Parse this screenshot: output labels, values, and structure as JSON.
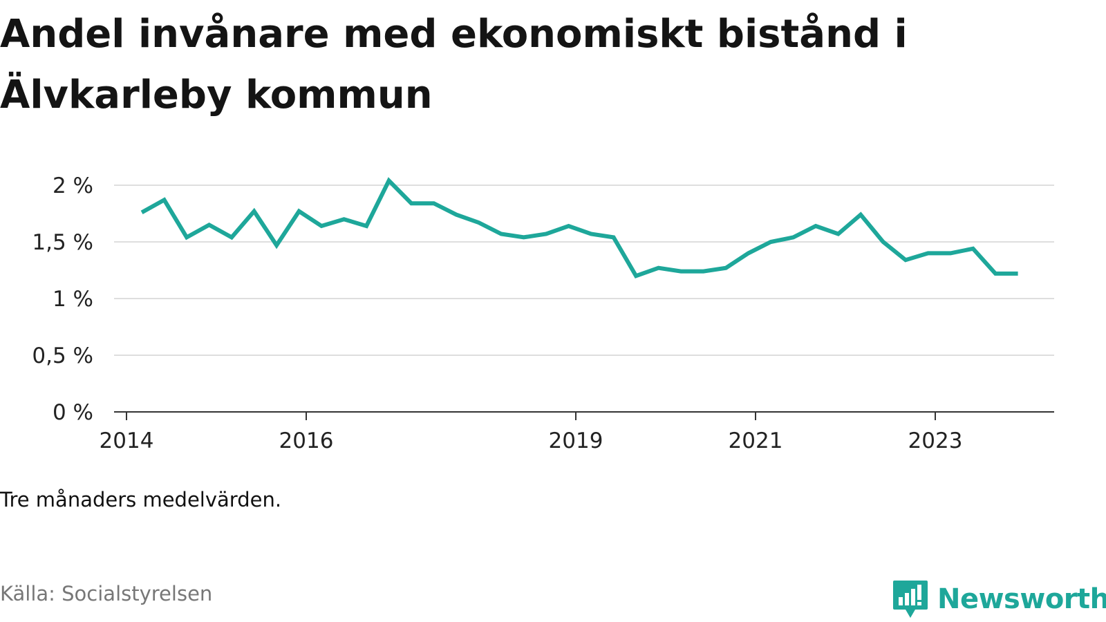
{
  "title": "Andel invånare med ekonomiskt bistånd i Älvkarleby kommun",
  "note": "Tre månaders medelvärden.",
  "source": "Källa: Socialstyrelsen",
  "brand": {
    "name": "Newsworthy",
    "icon": "newsworthy-logo-icon",
    "color": "#1ea79a"
  },
  "chart_data": {
    "type": "line",
    "title": "Andel invånare med ekonomiskt bistånd i Älvkarleby kommun",
    "xlabel": "",
    "ylabel": "",
    "ylim": [
      0,
      2
    ],
    "yticks": [
      0,
      0.5,
      1,
      1.5,
      2
    ],
    "ytick_labels": [
      "0 %",
      "0,5 %",
      "1 %",
      "1,5 %",
      "2 %"
    ],
    "xticks": [
      2014,
      2016,
      2019,
      2021,
      2023
    ],
    "xtick_labels": [
      "2014",
      "2016",
      "2019",
      "2021",
      "2023"
    ],
    "grid": true,
    "line_color": "#1ea79a",
    "series": [
      {
        "x": [
          2014.17,
          2014.42,
          2014.67,
          2014.92,
          2015.17,
          2015.42,
          2015.67,
          2015.92,
          2016.17,
          2016.42,
          2016.67,
          2016.92,
          2017.17,
          2017.42,
          2017.67,
          2017.92,
          2018.17,
          2018.42,
          2018.67,
          2018.92,
          2019.17,
          2019.42,
          2019.67,
          2019.92,
          2020.17,
          2020.42,
          2020.67,
          2020.92,
          2021.17,
          2021.42,
          2021.67,
          2021.92,
          2022.17,
          2022.42,
          2022.67,
          2022.92,
          2023.17,
          2023.42,
          2023.67,
          2023.92
        ],
        "values": [
          1.76,
          1.87,
          1.54,
          1.65,
          1.54,
          1.77,
          1.47,
          1.77,
          1.64,
          1.7,
          1.64,
          2.04,
          1.84,
          1.84,
          1.74,
          1.67,
          1.57,
          1.54,
          1.57,
          1.64,
          1.57,
          1.54,
          1.2,
          1.27,
          1.24,
          1.24,
          1.27,
          1.4,
          1.5,
          1.54,
          1.64,
          1.57,
          1.74,
          1.5,
          1.34,
          1.4,
          1.4,
          1.44,
          1.22,
          1.22
        ]
      }
    ]
  }
}
